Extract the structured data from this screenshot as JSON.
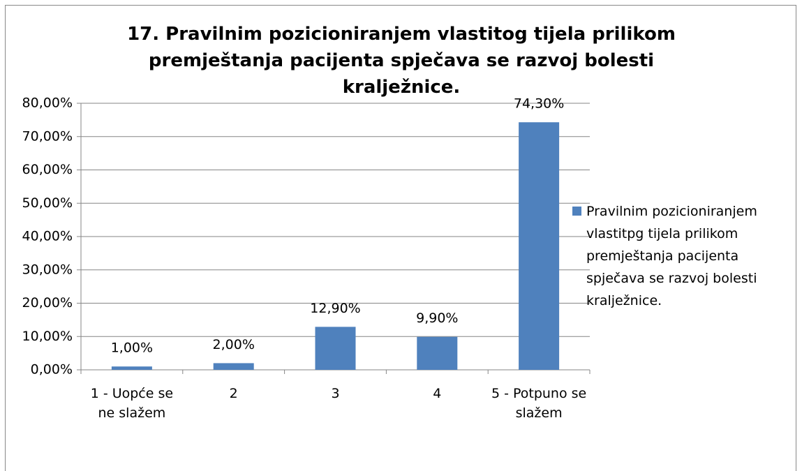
{
  "chart_data": {
    "type": "bar",
    "title": "17. Pravilnim pozicioniranjem vlastitog tijela prilikom premještanja pacijenta spječava se razvoj bolesti kralježnice.",
    "categories": [
      "1 - Uopće se ne slažem",
      "2",
      "3",
      "4",
      "5 - Potpuno se slažem"
    ],
    "series": [
      {
        "name": "Pravilnim pozicioniranjem vlastitpg tijela prilikom premještanja pacijenta spječava se razvoj bolesti kralježnice.",
        "color": "#4f81bd",
        "values": [
          1,
          2,
          12.9,
          9.9,
          74.3
        ],
        "value_labels": [
          "1,00%",
          "2,00%",
          "12,90%",
          "9,90%",
          "74,30%"
        ]
      }
    ],
    "ylim": [
      0,
      80
    ],
    "yticks": [
      {
        "value": 0,
        "label": "0,00%"
      },
      {
        "value": 10,
        "label": "10,00%"
      },
      {
        "value": 20,
        "label": "20,00%"
      },
      {
        "value": 30,
        "label": "30,00%"
      },
      {
        "value": 40,
        "label": "40,00%"
      },
      {
        "value": 50,
        "label": "50,00%"
      },
      {
        "value": 60,
        "label": "60,00%"
      },
      {
        "value": 70,
        "label": "70,00%"
      },
      {
        "value": 80,
        "label": "80,00%"
      }
    ],
    "grid": true,
    "legend": "right"
  }
}
